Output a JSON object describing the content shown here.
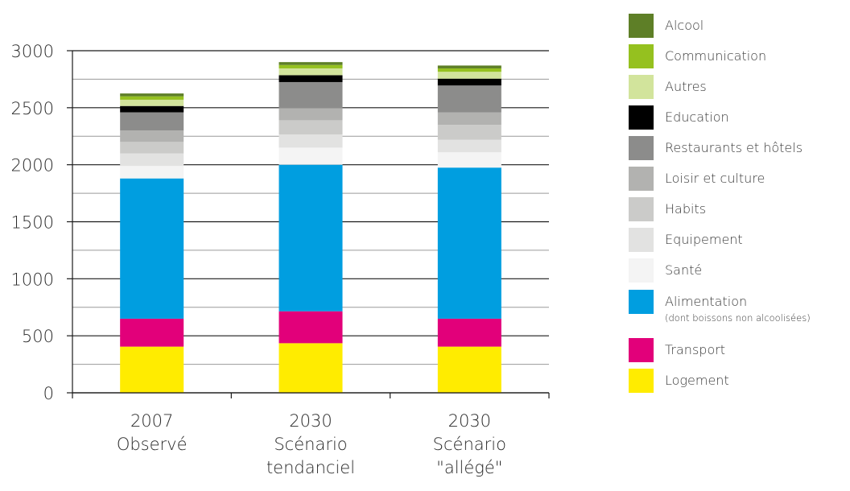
{
  "chart_data": {
    "type": "bar",
    "stacked": true,
    "title": "",
    "xlabel": "",
    "ylabel": "",
    "ylim": [
      0,
      3000
    ],
    "yticks": [
      0,
      500,
      1000,
      1500,
      2000,
      2500,
      3000
    ],
    "grid": true,
    "legend_position": "right",
    "categories": [
      [
        "2007",
        "Observé"
      ],
      [
        "2030",
        "Scénario",
        "tendanciel"
      ],
      [
        "2030",
        "Scénario",
        "\"allégé\""
      ]
    ],
    "series": [
      {
        "name": "Logement",
        "color": "#ffec00",
        "values": [
          405,
          435,
          405
        ]
      },
      {
        "name": "Transport",
        "color": "#e2007a",
        "values": [
          245,
          280,
          245
        ]
      },
      {
        "name": "Alimentation",
        "sublabel": "(dont boissons non alcoolisées)",
        "color": "#009ee0",
        "values": [
          1230,
          1285,
          1325
        ]
      },
      {
        "name": "Santé",
        "color": "#f4f4f4",
        "values": [
          110,
          150,
          135
        ]
      },
      {
        "name": "Equipement",
        "color": "#e2e2e1",
        "values": [
          110,
          115,
          110
        ]
      },
      {
        "name": "Habits",
        "color": "#cbcbc9",
        "values": [
          100,
          125,
          130
        ]
      },
      {
        "name": "Loisir et culture",
        "color": "#b2b2b0",
        "values": [
          100,
          105,
          110
        ]
      },
      {
        "name": "Restaurants et hôtels",
        "color": "#8c8c8b",
        "values": [
          160,
          230,
          235
        ]
      },
      {
        "name": "Education",
        "color": "#000000",
        "values": [
          55,
          60,
          60
        ]
      },
      {
        "name": "Autres",
        "color": "#d2e49c",
        "values": [
          55,
          60,
          60
        ]
      },
      {
        "name": "Communication",
        "color": "#95c11f",
        "values": [
          30,
          30,
          30
        ]
      },
      {
        "name": "Alcool",
        "color": "#5e7f27",
        "values": [
          25,
          25,
          25
        ]
      }
    ]
  }
}
